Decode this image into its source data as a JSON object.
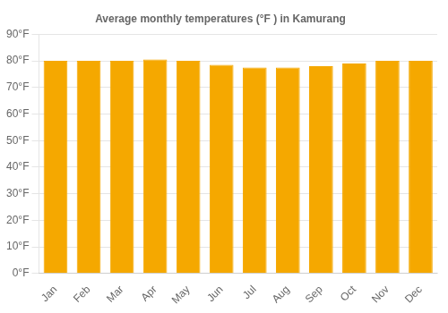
{
  "chart_data": {
    "type": "bar",
    "title": "Average monthly temperatures (°F ) in Kamurang",
    "categories": [
      "Jan",
      "Feb",
      "Mar",
      "Apr",
      "May",
      "Jun",
      "Jul",
      "Aug",
      "Sep",
      "Oct",
      "Nov",
      "Dec"
    ],
    "values": [
      80.0,
      80.0,
      80.0,
      80.5,
      80.0,
      78.5,
      77.5,
      77.5,
      78.0,
      79.0,
      80.0,
      80.0
    ],
    "color": "#F5A800",
    "ylim": [
      0,
      90
    ],
    "yticks": [
      {
        "value": 0,
        "label": "0°F"
      },
      {
        "value": 10,
        "label": "10°F"
      },
      {
        "value": 20,
        "label": "20°F"
      },
      {
        "value": 30,
        "label": "30°F"
      },
      {
        "value": 40,
        "label": "40°F"
      },
      {
        "value": 50,
        "label": "50°F"
      },
      {
        "value": 60,
        "label": "60°F"
      },
      {
        "value": 70,
        "label": "70°F"
      },
      {
        "value": 80,
        "label": "80°F"
      },
      {
        "value": 90,
        "label": "90°F"
      }
    ],
    "grid": true
  }
}
